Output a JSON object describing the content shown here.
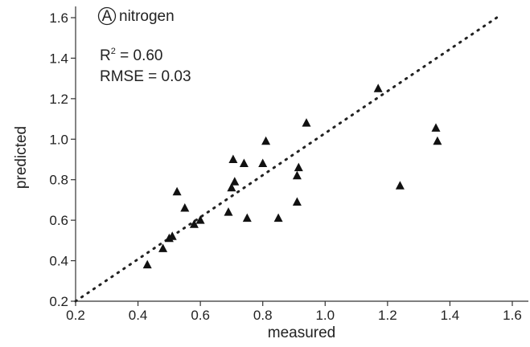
{
  "chart_data": {
    "type": "scatter",
    "panel_letter": "A",
    "panel_label": "nitrogen",
    "annotations": {
      "r2_prefix": "R",
      "r2_sup": "2",
      "r2_value": " = 0.60",
      "rmse": "RMSE = 0.03"
    },
    "xlabel": "measured",
    "ylabel": "predicted",
    "xlim": [
      0.2,
      1.6
    ],
    "ylim": [
      0.2,
      1.6
    ],
    "xticks": [
      "0.2",
      "0.4",
      "0.6",
      "0.8",
      "1.0",
      "1.2",
      "1.4",
      "1.6"
    ],
    "yticks": [
      "0.2",
      "0.4",
      "0.6",
      "0.8",
      "1.0",
      "1.2",
      "1.4",
      "1.6"
    ],
    "reference_line": {
      "style": "dotted",
      "from": [
        0.2,
        0.2
      ],
      "to": [
        1.55,
        1.6
      ]
    },
    "marker": "triangle",
    "marker_color": "#111111",
    "points": [
      {
        "x": 0.43,
        "y": 0.38
      },
      {
        "x": 0.48,
        "y": 0.46
      },
      {
        "x": 0.5,
        "y": 0.51
      },
      {
        "x": 0.51,
        "y": 0.52
      },
      {
        "x": 0.525,
        "y": 0.74
      },
      {
        "x": 0.55,
        "y": 0.66
      },
      {
        "x": 0.58,
        "y": 0.58
      },
      {
        "x": 0.6,
        "y": 0.6
      },
      {
        "x": 0.69,
        "y": 0.64
      },
      {
        "x": 0.7,
        "y": 0.76
      },
      {
        "x": 0.705,
        "y": 0.9
      },
      {
        "x": 0.71,
        "y": 0.79
      },
      {
        "x": 0.74,
        "y": 0.88
      },
      {
        "x": 0.75,
        "y": 0.61
      },
      {
        "x": 0.8,
        "y": 0.88
      },
      {
        "x": 0.81,
        "y": 0.99
      },
      {
        "x": 0.85,
        "y": 0.61
      },
      {
        "x": 0.91,
        "y": 0.82
      },
      {
        "x": 0.915,
        "y": 0.86
      },
      {
        "x": 0.91,
        "y": 0.69
      },
      {
        "x": 0.94,
        "y": 1.08
      },
      {
        "x": 1.17,
        "y": 1.25
      },
      {
        "x": 1.24,
        "y": 0.77
      },
      {
        "x": 1.355,
        "y": 1.055
      },
      {
        "x": 1.36,
        "y": 0.99
      }
    ]
  }
}
